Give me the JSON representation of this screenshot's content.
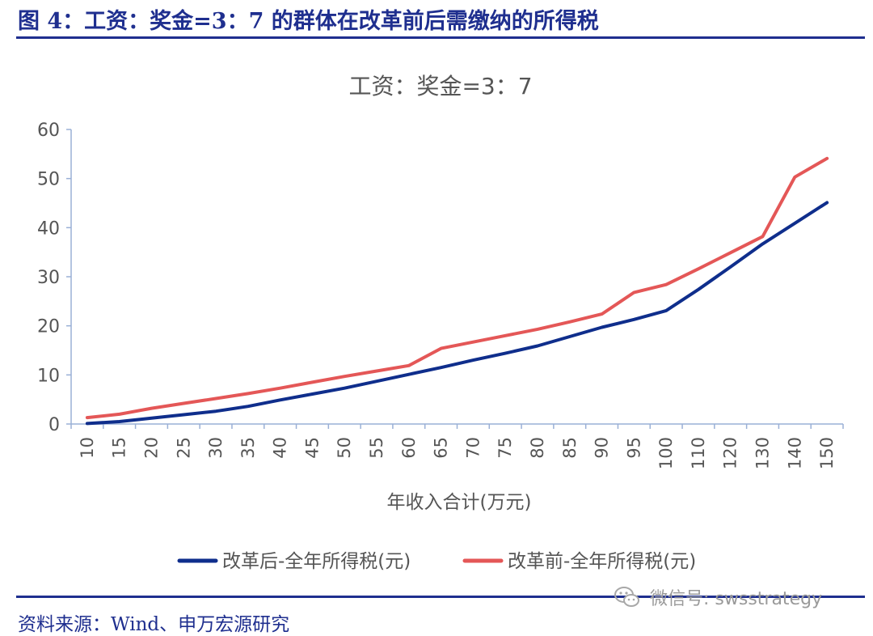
{
  "figure": {
    "title": "图 4：工资：奖金=3：7 的群体在改革前后需缴纳的所得税",
    "source": "资料来源：Wind、申万宏源研究",
    "watermark": "微信号: swsstrategy",
    "watermark_icon": "wechat-icon"
  },
  "chart_data": {
    "type": "line",
    "title": "工资：奖金=3：7",
    "xlabel": "年收入合计(万元)",
    "ylabel": "",
    "categories": [
      "10",
      "15",
      "20",
      "25",
      "30",
      "35",
      "40",
      "45",
      "50",
      "55",
      "60",
      "65",
      "70",
      "75",
      "80",
      "85",
      "90",
      "95",
      "100",
      "110",
      "120",
      "130",
      "140",
      "150"
    ],
    "ylim": [
      0,
      60
    ],
    "yticks": [
      0,
      10,
      20,
      30,
      40,
      50,
      60
    ],
    "grid": false,
    "legend_position": "bottom",
    "series": [
      {
        "name": "改革后-全年所得税(元)",
        "color": "#0f2e8c",
        "values": [
          0.1,
          0.5,
          1.2,
          1.9,
          2.6,
          3.6,
          4.9,
          6.1,
          7.3,
          8.7,
          10.1,
          11.5,
          13.0,
          14.4,
          15.9,
          17.8,
          19.7,
          21.3,
          23.1,
          27.4,
          32.0,
          36.7,
          40.9,
          45.1
        ]
      },
      {
        "name": "改革前-全年所得税(元)",
        "color": "#e45757",
        "values": [
          1.3,
          2.0,
          3.2,
          4.2,
          5.2,
          6.2,
          7.3,
          8.5,
          9.7,
          10.8,
          11.9,
          15.4,
          16.7,
          18.0,
          19.3,
          20.8,
          22.4,
          26.8,
          28.4,
          31.6,
          34.9,
          38.2,
          50.3,
          54.1
        ]
      }
    ]
  }
}
